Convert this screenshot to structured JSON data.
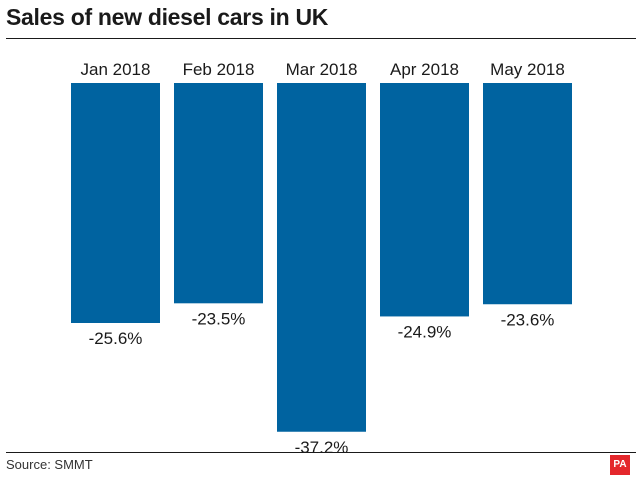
{
  "chart_data": {
    "type": "bar",
    "title": "Sales of new diesel cars in UK",
    "categories": [
      "Jan 2018",
      "Feb 2018",
      "Mar 2018",
      "Apr 2018",
      "May 2018"
    ],
    "values": [
      -25.6,
      -23.5,
      -37.2,
      -24.9,
      -23.6
    ],
    "value_labels": [
      "-25.6%",
      "-23.5%",
      "-37.2%",
      "-24.9%",
      "-23.6%"
    ],
    "ylim": [
      -40,
      0
    ],
    "grid": false,
    "bar_color": "#0063a0",
    "category_axis_position": "top",
    "xlabel": "",
    "ylabel": ""
  },
  "footer": {
    "source": "Source: SMMT",
    "logo": "PA",
    "logo_color": "#e4272c"
  }
}
